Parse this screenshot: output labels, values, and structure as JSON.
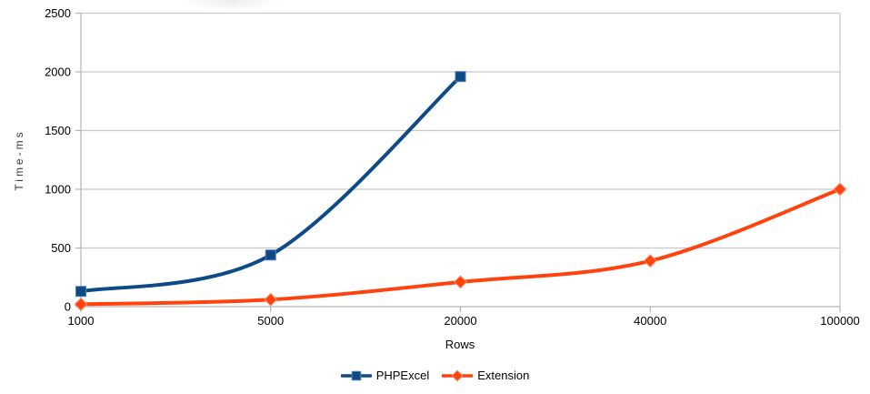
{
  "chart_data": {
    "type": "line",
    "title": "",
    "xlabel": "Rows",
    "ylabel": "Time-ms",
    "categories": [
      "1000",
      "5000",
      "20000",
      "40000",
      "100000"
    ],
    "series": [
      {
        "name": "PHPExcel",
        "color": "#0e4a86",
        "marker_stroke": "#4a7fb5",
        "marker": "square",
        "values": [
          130,
          440,
          1960,
          null,
          null
        ]
      },
      {
        "name": "Extension",
        "color": "#ff420e",
        "marker_stroke": "#ff8a60",
        "marker": "diamond",
        "values": [
          20,
          60,
          210,
          390,
          1000
        ]
      }
    ],
    "y_ticks": [
      0,
      500,
      1000,
      1500,
      2000,
      2500
    ],
    "ylim": [
      0,
      2500
    ],
    "grid": "horizontal",
    "legend_position": "bottom",
    "line_width": 4
  },
  "colors": {
    "background": "#ffffff",
    "gridline": "#c8c8c8",
    "axis": "#b3b3b3",
    "tick_text": "#000000",
    "axis_title_text": "#3a3a3a"
  }
}
